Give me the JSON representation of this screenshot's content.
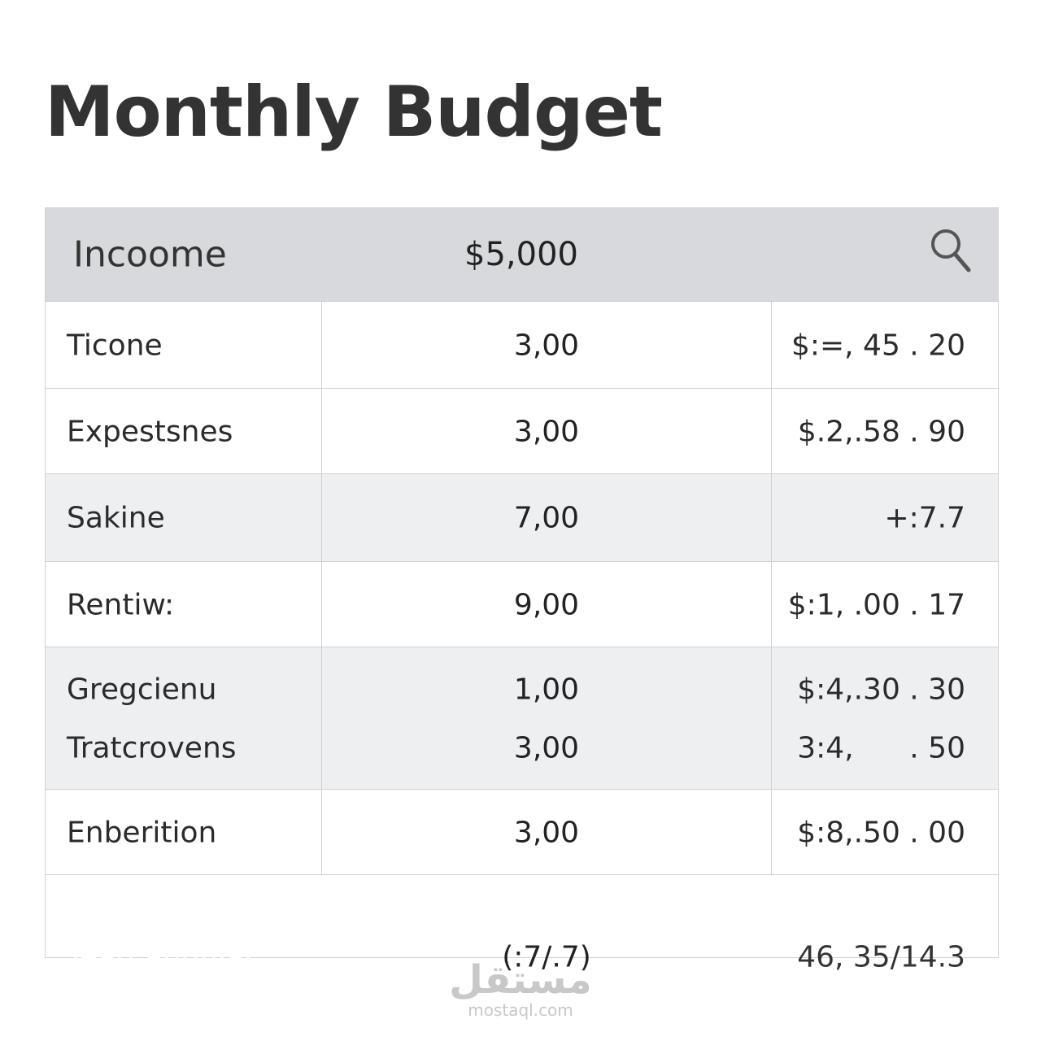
{
  "header": {
    "title": "Monthly Budget"
  },
  "table": {
    "head": [
      "Incoome",
      "$5,000"
    ],
    "rows": [
      [
        [
          "Ticone",
          "3,00",
          "$:=, 45 . 20"
        ]
      ],
      [
        [
          "Expestsnes",
          "3,00",
          "$.2,.58 . 90"
        ]
      ],
      [
        [
          "Sakine",
          "7,00",
          "+:7.7"
        ]
      ],
      [
        [
          "Rentiw:",
          "9,00",
          "$:1, .00 . 17"
        ]
      ],
      [
        [
          "Gregcienu",
          "1,00",
          "$:4,.30 . 30"
        ],
        [
          "Tratcrovens",
          "3,00",
          "3:4,      . 50"
        ]
      ],
      [
        [
          "Enberition",
          "3,00",
          "$:8,.50 . 00"
        ]
      ]
    ],
    "footer": [
      "Teatl anufilai:",
      "(:7/.7)",
      "46, 35/14.3"
    ]
  },
  "watermark": {
    "arabic": "مستقل",
    "site": "mostaql.com"
  }
}
